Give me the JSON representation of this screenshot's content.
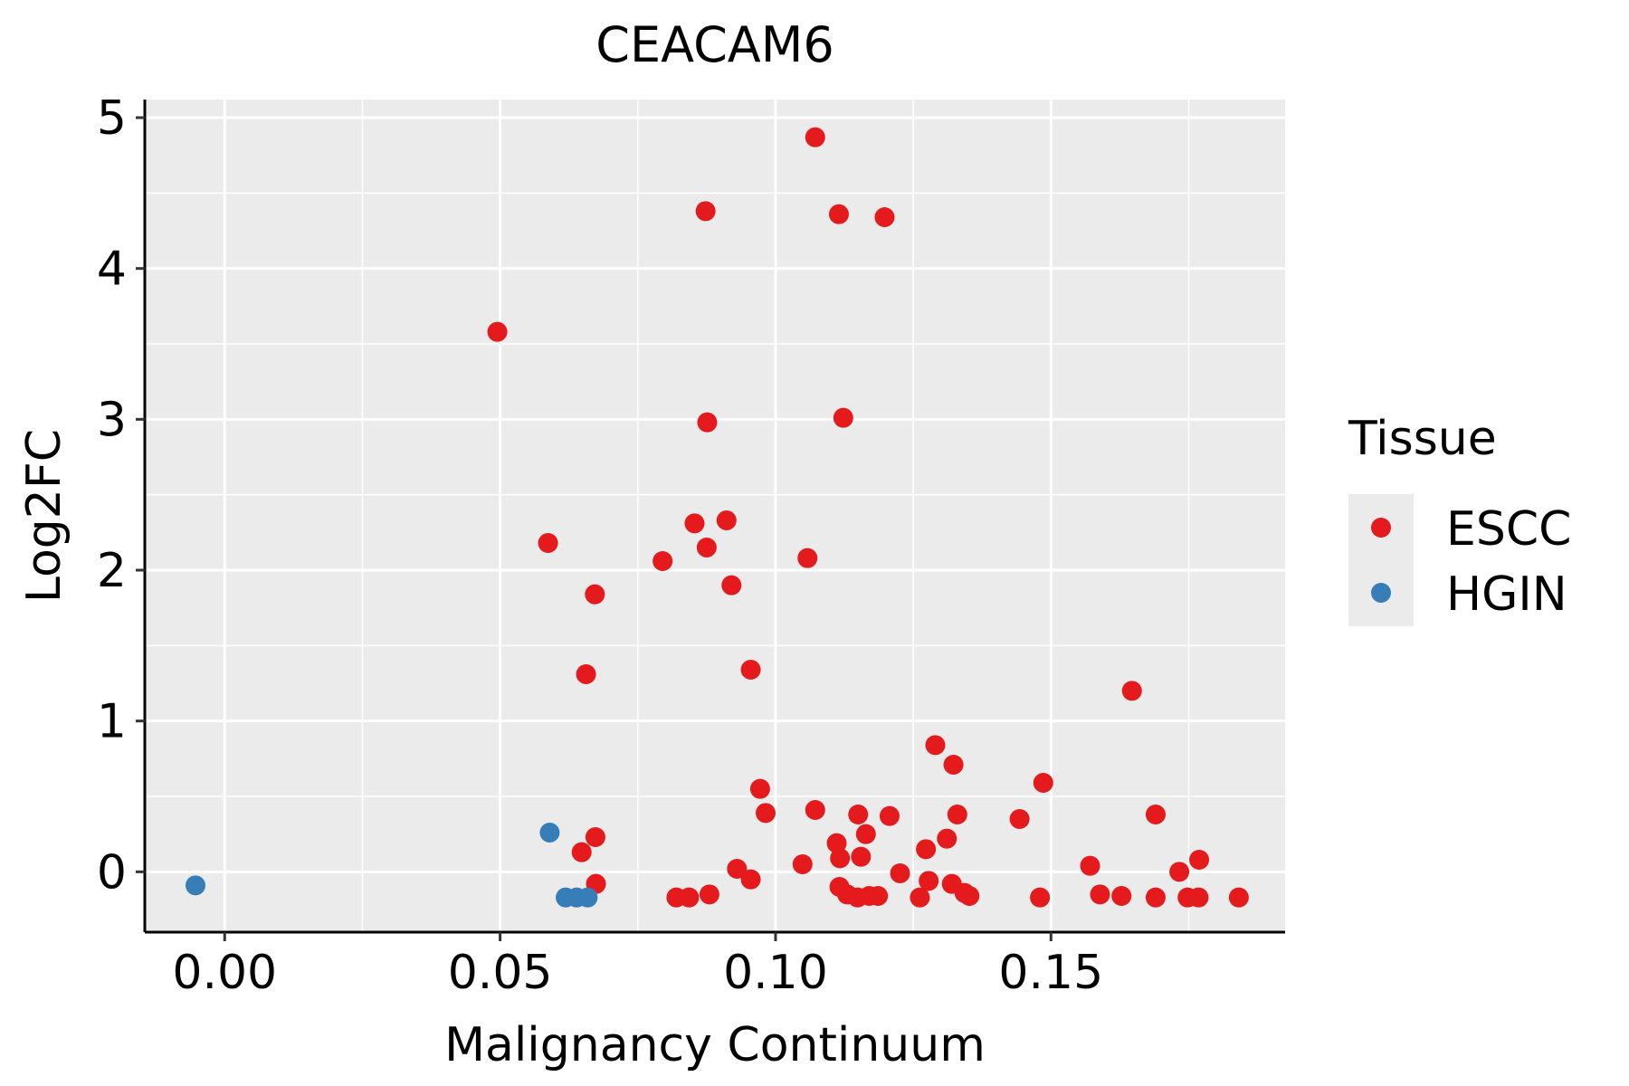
{
  "chart_data": {
    "type": "scatter",
    "title": "CEACAM6",
    "xlabel": "Malignancy Continuum",
    "ylabel": "Log2FC",
    "xlim": [
      -0.0145,
      0.1925
    ],
    "ylim": [
      -0.4,
      5.12
    ],
    "x_ticks": [
      0.0,
      0.05,
      0.1,
      0.15
    ],
    "x_tick_labels": [
      "0.00",
      "0.05",
      "0.10",
      "0.15"
    ],
    "y_ticks": [
      0,
      1,
      2,
      3,
      4,
      5
    ],
    "y_tick_labels": [
      "0",
      "1",
      "2",
      "3",
      "4",
      "5"
    ],
    "grid": true,
    "legend": {
      "title": "Tissue",
      "position": "right",
      "entries": [
        {
          "label": "ESCC",
          "color": "#E41A1C"
        },
        {
          "label": "HGIN",
          "color": "#377EB8"
        }
      ]
    },
    "series": [
      {
        "name": "ESCC",
        "color": "#E41A1C",
        "points": [
          [
            0.1072,
            4.87
          ],
          [
            0.0873,
            4.38
          ],
          [
            0.1115,
            4.36
          ],
          [
            0.1198,
            4.34
          ],
          [
            0.0495,
            3.58
          ],
          [
            0.0876,
            2.98
          ],
          [
            0.1123,
            3.01
          ],
          [
            0.0587,
            2.18
          ],
          [
            0.0853,
            2.31
          ],
          [
            0.0911,
            2.33
          ],
          [
            0.0795,
            2.06
          ],
          [
            0.0875,
            2.15
          ],
          [
            0.1058,
            2.08
          ],
          [
            0.092,
            1.9
          ],
          [
            0.0672,
            1.84
          ],
          [
            0.0656,
            1.31
          ],
          [
            0.0955,
            1.34
          ],
          [
            0.1647,
            1.2
          ],
          [
            0.129,
            0.84
          ],
          [
            0.1323,
            0.71
          ],
          [
            0.1486,
            0.59
          ],
          [
            0.0972,
            0.55
          ],
          [
            0.0982,
            0.39
          ],
          [
            0.1072,
            0.41
          ],
          [
            0.115,
            0.38
          ],
          [
            0.1207,
            0.37
          ],
          [
            0.133,
            0.38
          ],
          [
            0.1443,
            0.35
          ],
          [
            0.169,
            0.38
          ],
          [
            0.0673,
            0.23
          ],
          [
            0.0648,
            0.13
          ],
          [
            0.1111,
            0.19
          ],
          [
            0.1117,
            0.09
          ],
          [
            0.1164,
            0.25
          ],
          [
            0.1155,
            0.1
          ],
          [
            0.1273,
            0.15
          ],
          [
            0.1311,
            0.22
          ],
          [
            0.1769,
            0.08
          ],
          [
            0.1571,
            0.04
          ],
          [
            0.093,
            0.02
          ],
          [
            0.1049,
            0.05
          ],
          [
            0.1226,
            -0.01
          ],
          [
            0.1733,
            0.0
          ],
          [
            0.0674,
            -0.08
          ],
          [
            0.0955,
            -0.05
          ],
          [
            0.1116,
            -0.1
          ],
          [
            0.1278,
            -0.06
          ],
          [
            0.132,
            -0.08
          ],
          [
            0.082,
            -0.17
          ],
          [
            0.0843,
            -0.17
          ],
          [
            0.088,
            -0.15
          ],
          [
            0.113,
            -0.15
          ],
          [
            0.1149,
            -0.17
          ],
          [
            0.117,
            -0.16
          ],
          [
            0.1186,
            -0.16
          ],
          [
            0.1262,
            -0.17
          ],
          [
            0.1343,
            -0.14
          ],
          [
            0.1352,
            -0.16
          ],
          [
            0.148,
            -0.17
          ],
          [
            0.1589,
            -0.15
          ],
          [
            0.1628,
            -0.16
          ],
          [
            0.169,
            -0.17
          ],
          [
            0.1748,
            -0.17
          ],
          [
            0.1768,
            -0.17
          ],
          [
            0.1841,
            -0.17
          ]
        ]
      },
      {
        "name": "HGIN",
        "color": "#377EB8",
        "points": [
          [
            -0.0053,
            -0.09
          ],
          [
            0.059,
            0.26
          ],
          [
            0.0619,
            -0.17
          ],
          [
            0.0639,
            -0.17
          ],
          [
            0.0659,
            -0.17
          ]
        ]
      }
    ]
  }
}
